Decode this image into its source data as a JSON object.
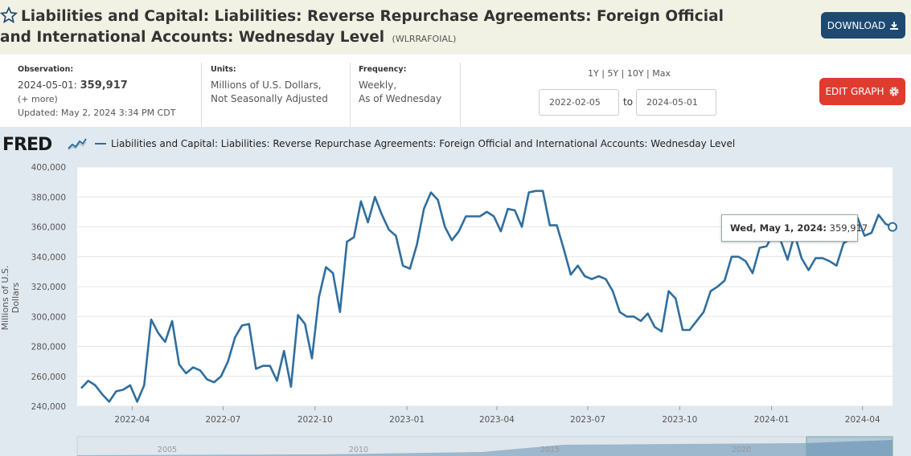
{
  "header": {
    "title": "Liabilities and Capital: Liabilities: Reverse Repurchase Agreements: Foreign Official and International Accounts: Wednesday Level",
    "series_id": "(WLRRAFOIAL)",
    "download_label": "DOWNLOAD",
    "edit_graph_label": "EDIT GRAPH"
  },
  "meta": {
    "observation_label": "Observation:",
    "observation_date": "2024-05-01:",
    "observation_value": "359,917",
    "more_label": "(+ more)",
    "updated": "Updated: May 2, 2024 3:34 PM CDT",
    "units_label": "Units:",
    "units_line1": "Millions of U.S. Dollars,",
    "units_line2": "Not Seasonally Adjusted",
    "frequency_label": "Frequency:",
    "frequency_line1": "Weekly,",
    "frequency_line2": "As of Wednesday"
  },
  "range": {
    "links": [
      "1Y",
      "5Y",
      "10Y",
      "Max"
    ],
    "separator": " | ",
    "start_date": "2022-02-05",
    "to_label": "to",
    "end_date": "2024-05-01"
  },
  "chart": {
    "logo": "FRED",
    "legend": "Liabilities and Capital: Liabilities: Reverse Repurchase Agreements: Foreign Official and International Accounts: Wednesday Level",
    "tooltip_date": "Wed, May 1, 2024:",
    "tooltip_value": "359,917"
  },
  "navigator": {
    "labels": [
      "2005",
      "2010",
      "2015",
      "2020"
    ]
  },
  "colors": {
    "series": "#2f6e9f",
    "download": "#1e4a72",
    "edit": "#e03b2f",
    "chart_bg": "#e1e9f0"
  },
  "chart_data": {
    "type": "line",
    "ylabel": "Millions of U.S. Dollars",
    "xlabel": "",
    "ylim": [
      240000,
      400000
    ],
    "yticks": [
      "240,000",
      "260,000",
      "280,000",
      "300,000",
      "320,000",
      "340,000",
      "360,000",
      "380,000",
      "400,000"
    ],
    "xticks": [
      "2022-04",
      "2022-07",
      "2022-10",
      "2023-01",
      "2023-04",
      "2023-07",
      "2023-10",
      "2024-01",
      "2024-04"
    ],
    "xlim": [
      "2022-02-05",
      "2024-05-01"
    ],
    "grid": true,
    "series": [
      {
        "name": "Liabilities and Capital: Liabilities: Reverse Repurchase Agreements: Foreign Official and International Accounts: Wednesday Level",
        "x": [
          "2022-02-09",
          "2022-02-16",
          "2022-02-23",
          "2022-03-02",
          "2022-03-09",
          "2022-03-16",
          "2022-03-23",
          "2022-03-30",
          "2022-04-06",
          "2022-04-13",
          "2022-04-20",
          "2022-04-27",
          "2022-05-04",
          "2022-05-11",
          "2022-05-18",
          "2022-05-25",
          "2022-06-01",
          "2022-06-08",
          "2022-06-15",
          "2022-06-22",
          "2022-06-29",
          "2022-07-06",
          "2022-07-13",
          "2022-07-20",
          "2022-07-27",
          "2022-08-03",
          "2022-08-10",
          "2022-08-17",
          "2022-08-24",
          "2022-08-31",
          "2022-09-07",
          "2022-09-14",
          "2022-09-21",
          "2022-09-28",
          "2022-10-05",
          "2022-10-12",
          "2022-10-19",
          "2022-10-26",
          "2022-11-02",
          "2022-11-09",
          "2022-11-16",
          "2022-11-23",
          "2022-11-30",
          "2022-12-07",
          "2022-12-14",
          "2022-12-21",
          "2022-12-28",
          "2023-01-04",
          "2023-01-11",
          "2023-01-18",
          "2023-01-25",
          "2023-02-01",
          "2023-02-08",
          "2023-02-15",
          "2023-02-22",
          "2023-03-01",
          "2023-03-08",
          "2023-03-15",
          "2023-03-22",
          "2023-03-29",
          "2023-04-05",
          "2023-04-12",
          "2023-04-19",
          "2023-04-26",
          "2023-05-03",
          "2023-05-10",
          "2023-05-17",
          "2023-05-24",
          "2023-05-31",
          "2023-06-07",
          "2023-06-14",
          "2023-06-21",
          "2023-06-28",
          "2023-07-05",
          "2023-07-12",
          "2023-07-19",
          "2023-07-26",
          "2023-08-02",
          "2023-08-09",
          "2023-08-16",
          "2023-08-23",
          "2023-08-30",
          "2023-09-06",
          "2023-09-13",
          "2023-09-20",
          "2023-09-27",
          "2023-10-04",
          "2023-10-11",
          "2023-10-18",
          "2023-10-25",
          "2023-11-01",
          "2023-11-08",
          "2023-11-15",
          "2023-11-22",
          "2023-11-29",
          "2023-12-06",
          "2023-12-13",
          "2023-12-20",
          "2023-12-27",
          "2024-01-03",
          "2024-01-10",
          "2024-01-17",
          "2024-01-24",
          "2024-01-31",
          "2024-02-07",
          "2024-02-14",
          "2024-02-21",
          "2024-02-28",
          "2024-03-06",
          "2024-03-13",
          "2024-03-20",
          "2024-03-27",
          "2024-04-03",
          "2024-04-10",
          "2024-04-17",
          "2024-04-24",
          "2024-05-01"
        ],
        "values": [
          252000,
          257000,
          254000,
          248000,
          243000,
          250000,
          251000,
          254000,
          243000,
          254000,
          298000,
          289000,
          283000,
          297000,
          268000,
          262000,
          266000,
          264000,
          258000,
          256000,
          260000,
          270000,
          286000,
          294000,
          295000,
          265000,
          267000,
          267000,
          257000,
          277000,
          253000,
          301000,
          295000,
          272000,
          313000,
          333000,
          329000,
          303000,
          350000,
          353000,
          377000,
          363000,
          380000,
          368000,
          358000,
          354000,
          334000,
          332000,
          348000,
          372000,
          383000,
          378000,
          360000,
          351000,
          357000,
          367000,
          367000,
          367000,
          370000,
          367000,
          357000,
          372000,
          371000,
          360000,
          383000,
          384000,
          384000,
          361000,
          361000,
          345000,
          328000,
          334000,
          327000,
          325000,
          327000,
          325000,
          317000,
          303000,
          300000,
          300000,
          297000,
          302000,
          293000,
          290000,
          317000,
          312000,
          291000,
          291000,
          297000,
          303000,
          317000,
          320000,
          324000,
          340000,
          340000,
          337000,
          329000,
          346000,
          347000,
          356000,
          351000,
          338000,
          355000,
          339000,
          331000,
          339000,
          339000,
          337000,
          334000,
          349000,
          352000,
          366000,
          354000,
          356000,
          368000,
          362000,
          359917
        ]
      }
    ]
  }
}
